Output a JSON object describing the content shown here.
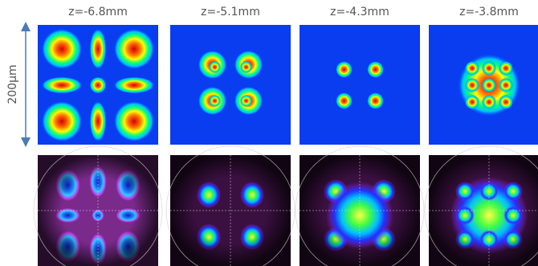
{
  "column_labels": [
    "z=-6.8mm",
    "z=-5.1mm",
    "z=-4.3mm",
    "z=-3.8mm"
  ],
  "scale_bar": {
    "label": "200µm"
  }
}
